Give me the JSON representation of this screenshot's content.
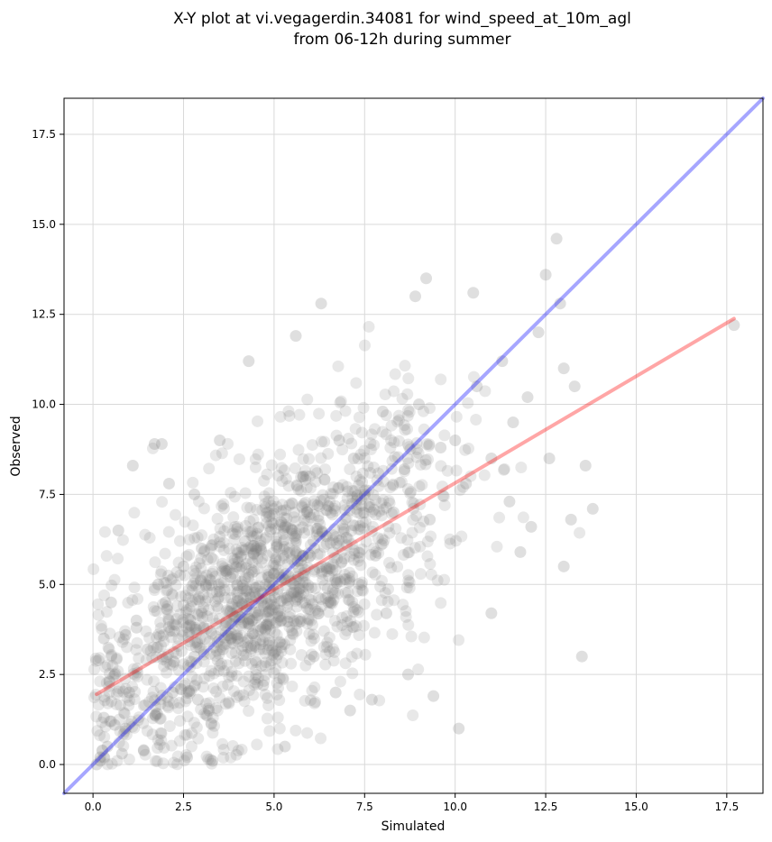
{
  "chart_data": {
    "type": "scatter",
    "title": [
      "X-Y plot at vi.vegagerdin.34081 for wind_speed_at_10m_agl",
      "from 06-12h during summer"
    ],
    "xlabel": "Simulated",
    "ylabel": "Observed",
    "xlim": [
      -0.8,
      18.5
    ],
    "ylim": [
      -0.8,
      18.5
    ],
    "x_ticks": [
      0.0,
      2.5,
      5.0,
      7.5,
      10.0,
      12.5,
      15.0,
      17.5
    ],
    "y_ticks": [
      0.0,
      2.5,
      5.0,
      7.5,
      10.0,
      12.5,
      15.0,
      17.5
    ],
    "grid": true,
    "colors": {
      "points": "#808080",
      "identity_line": "#0000ff",
      "fit_line": "#ff0000"
    },
    "series": [
      {
        "kind": "points",
        "note_count": 1600,
        "x": [
          0.4,
          0.5,
          0.6,
          0.3,
          0.8,
          1.0,
          1.2,
          0.9,
          0.7,
          0.2,
          1.5,
          1.8,
          2.0,
          2.2,
          2.5,
          2.8,
          3.0,
          3.2,
          3.5,
          3.8,
          4.0,
          4.2,
          4.5,
          4.8,
          5.0,
          5.2,
          5.5,
          5.8,
          6.0,
          6.2,
          6.5,
          6.8,
          7.0,
          7.2,
          7.5,
          7.8,
          8.0,
          8.3,
          8.6,
          9.0,
          9.3,
          9.6,
          10.0,
          10.3,
          10.6,
          11.0,
          11.3,
          11.6,
          12.0,
          12.3,
          12.6,
          13.0,
          13.3,
          13.6,
          17.7,
          12.8,
          12.5,
          12.9,
          4.3,
          5.6,
          6.3,
          9.2,
          8.9,
          10.5,
          13.0,
          13.5,
          10.1,
          0.5,
          1.2,
          1.7,
          2.9,
          3.3,
          4.1,
          4.7,
          5.3,
          6.1,
          6.7,
          7.1,
          7.7,
          8.1,
          8.7,
          9.4,
          11.8,
          12.1,
          13.8,
          11.0,
          13.2,
          11.5,
          3.5,
          2.8,
          1.9,
          1.1,
          0.3,
          0.6,
          0.2,
          0.1,
          0.9,
          1.4,
          2.1,
          2.6
        ],
        "y": [
          0.5,
          1.2,
          2.5,
          3.5,
          0.3,
          2.0,
          4.0,
          1.0,
          6.5,
          0.2,
          3.2,
          5.0,
          4.5,
          2.0,
          5.5,
          3.0,
          6.0,
          1.5,
          4.8,
          5.2,
          3.5,
          6.2,
          4.9,
          7.0,
          5.3,
          4.0,
          6.5,
          8.0,
          5.8,
          7.2,
          4.5,
          9.0,
          6.3,
          8.5,
          7.5,
          5.8,
          9.8,
          7.0,
          8.2,
          10.0,
          6.8,
          8.8,
          9.0,
          7.8,
          10.5,
          8.5,
          11.2,
          9.5,
          10.2,
          12.0,
          8.5,
          11.0,
          10.5,
          8.3,
          12.2,
          14.6,
          13.6,
          12.8,
          11.2,
          11.9,
          12.8,
          13.5,
          13.0,
          13.1,
          5.5,
          3.0,
          1.0,
          4.5,
          3.8,
          8.9,
          1.8,
          0.1,
          5.5,
          2.2,
          0.5,
          3.0,
          2.0,
          1.5,
          1.8,
          4.2,
          2.5,
          1.9,
          5.9,
          6.6,
          7.1,
          4.2,
          6.8,
          7.3,
          9.0,
          7.5,
          8.9,
          8.3,
          1.3,
          1.1,
          0.1,
          0.0,
          3.6,
          0.4,
          7.8,
          0.2
        ]
      },
      {
        "kind": "line",
        "x": [
          -0.8,
          18.5
        ],
        "y": [
          -0.8,
          18.5
        ]
      },
      {
        "kind": "line",
        "x": [
          0.1,
          17.7
        ],
        "y": [
          1.95,
          12.38
        ]
      }
    ]
  }
}
